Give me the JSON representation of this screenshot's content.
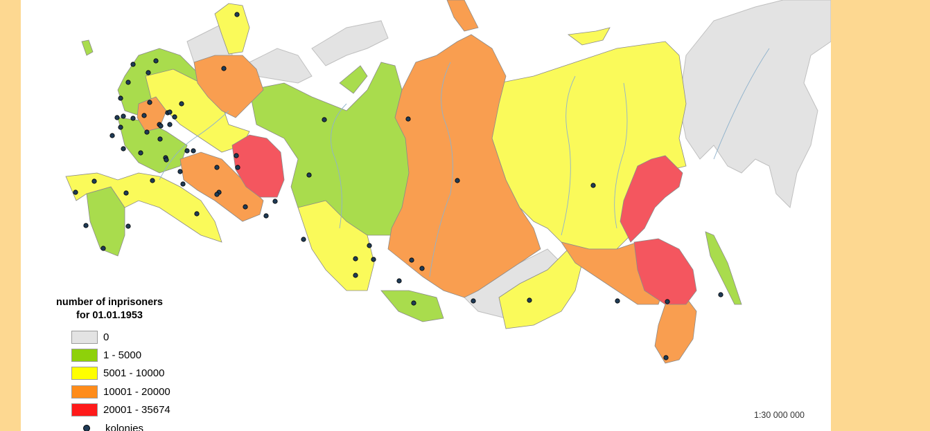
{
  "legend": {
    "title_line1": "number of inprisoners",
    "title_line2": "for 01.01.1953",
    "items": [
      {
        "label": "0",
        "color": "#e3e3e3"
      },
      {
        "label": "1 - 5000",
        "color": "#8ed10a"
      },
      {
        "label": "5001 - 10000",
        "color": "#ffff00"
      },
      {
        "label": "10001 - 20000",
        "color": "#ff8c1a"
      },
      {
        "label": "20001 - 35674",
        "color": "#ff1a1a"
      }
    ],
    "colonies_label": "kolonies"
  },
  "scale_text": "1:30 000 000",
  "colors": {
    "background": "#fdd891",
    "water": "#ffffff",
    "river": "#8fb2cc",
    "colony_dot": "#1f3b56",
    "none": "#e3e3e3",
    "low": "#a9dc4d",
    "mid": "#fafa5a",
    "high": "#f99e50",
    "top": "#f4565f"
  }
}
